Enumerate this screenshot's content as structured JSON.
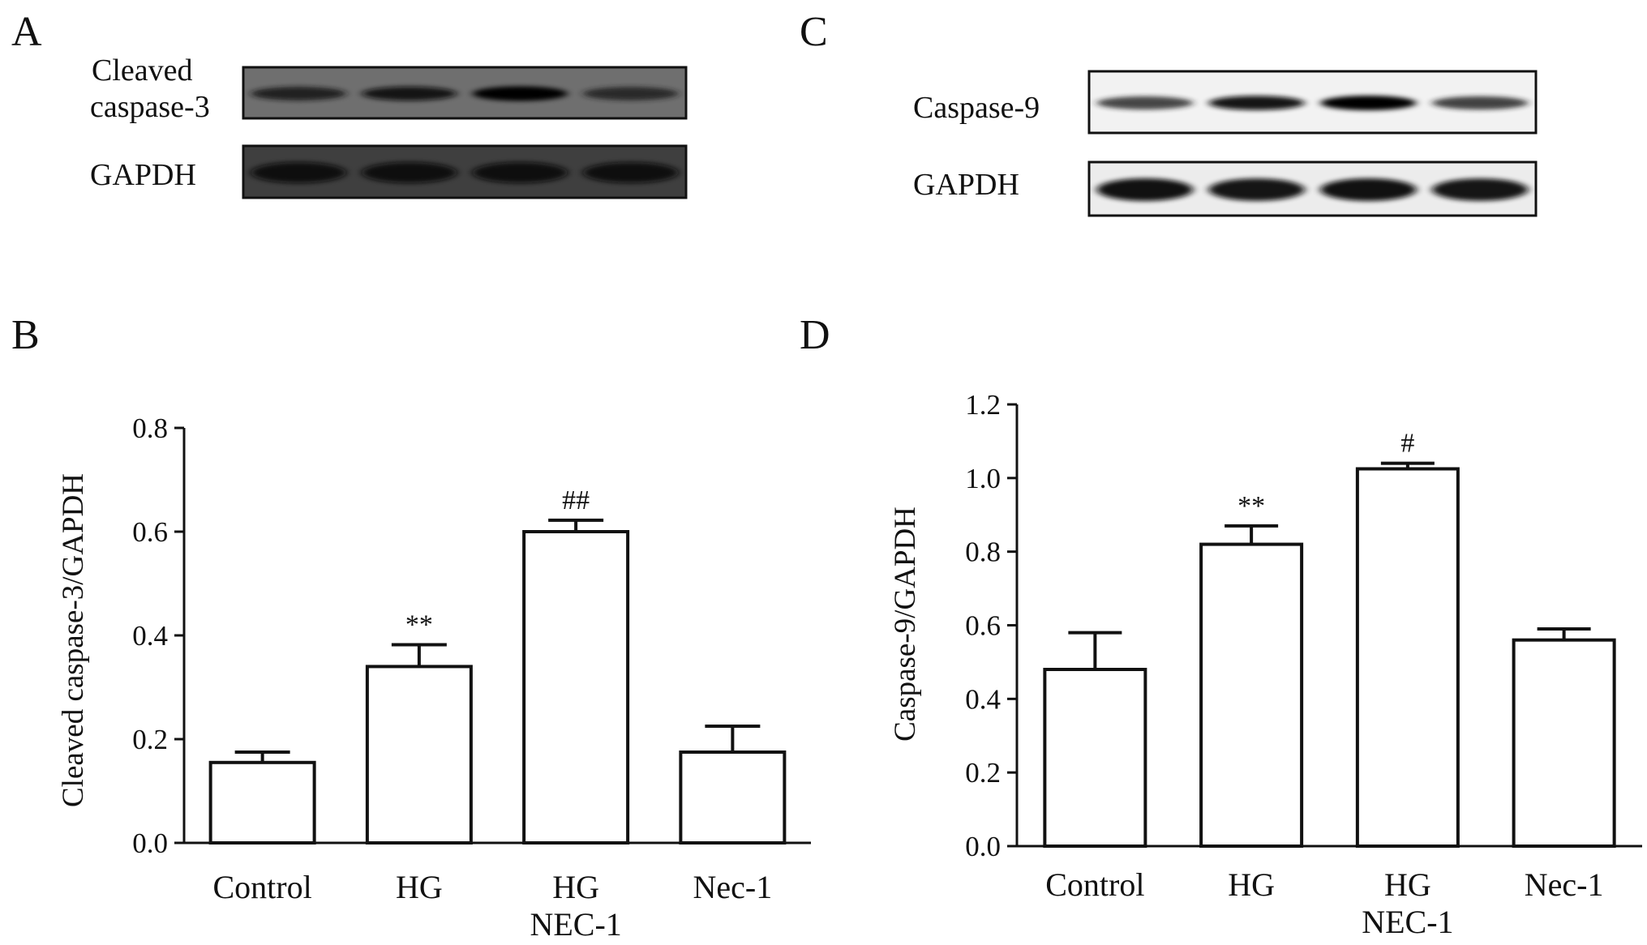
{
  "panels": {
    "A": {
      "letter": "A",
      "rows": [
        {
          "label_lines": [
            "Cleaved",
            "caspase-3"
          ],
          "bands": [
            0.72,
            0.82,
            1.0,
            0.62
          ]
        },
        {
          "label_lines": [
            "GAPDH"
          ],
          "bands": [
            0.92,
            0.92,
            0.92,
            0.9
          ]
        }
      ]
    },
    "C": {
      "letter": "C",
      "rows": [
        {
          "label_lines": [
            "Caspase-9"
          ],
          "bands": [
            0.55,
            0.9,
            1.0,
            0.6
          ]
        },
        {
          "label_lines": [
            "GAPDH"
          ],
          "bands": [
            0.95,
            0.9,
            0.95,
            0.9
          ]
        }
      ]
    },
    "B": {
      "letter": "B"
    },
    "D": {
      "letter": "D"
    }
  },
  "chart_data": [
    {
      "type": "bar",
      "panel": "B",
      "categories": [
        "Control",
        "HG",
        "HG NEC-1",
        "Nec-1"
      ],
      "category_lines": [
        [
          "Control"
        ],
        [
          "HG"
        ],
        [
          "HG",
          "NEC-1"
        ],
        [
          "Nec-1"
        ]
      ],
      "values": [
        0.155,
        0.34,
        0.6,
        0.175
      ],
      "errors": [
        0.02,
        0.042,
        0.022,
        0.05
      ],
      "annotations": [
        "",
        "**",
        "##",
        ""
      ],
      "ylabel": "Cleaved caspase-3/GAPDH",
      "xlabel": "",
      "ylim": [
        0,
        0.8
      ],
      "yticks": [
        "0.0",
        "0.2",
        "0.4",
        "0.6",
        "0.8"
      ],
      "grid": false
    },
    {
      "type": "bar",
      "panel": "D",
      "categories": [
        "Control",
        "HG",
        "HG NEC-1",
        "Nec-1"
      ],
      "category_lines": [
        [
          "Control"
        ],
        [
          "HG"
        ],
        [
          "HG",
          "NEC-1"
        ],
        [
          "Nec-1"
        ]
      ],
      "values": [
        0.48,
        0.82,
        1.025,
        0.56
      ],
      "errors": [
        0.1,
        0.05,
        0.015,
        0.03
      ],
      "annotations": [
        "",
        "**",
        "#",
        ""
      ],
      "ylabel": "Caspase-9/GAPDH",
      "xlabel": "",
      "ylim": [
        0,
        1.2
      ],
      "yticks": [
        "0.0",
        "0.2",
        "0.4",
        "0.6",
        "0.8",
        "1.0",
        "1.2"
      ],
      "grid": false
    }
  ]
}
